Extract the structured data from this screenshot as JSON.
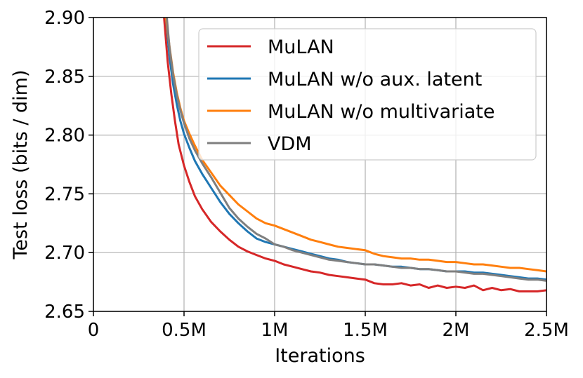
{
  "chart_data": {
    "type": "line",
    "xlabel": "Iterations",
    "ylabel": "Test loss (bits / dim)",
    "xlim": [
      0,
      2500000
    ],
    "ylim": [
      2.65,
      2.9
    ],
    "x_ticks": [
      {
        "value": 0,
        "label": "0"
      },
      {
        "value": 500000,
        "label": "0.5M"
      },
      {
        "value": 1000000,
        "label": "1M"
      },
      {
        "value": 1500000,
        "label": "1.5M"
      },
      {
        "value": 2000000,
        "label": "2M"
      },
      {
        "value": 2500000,
        "label": "2.5M"
      }
    ],
    "y_ticks": [
      {
        "value": 2.65,
        "label": "2.65"
      },
      {
        "value": 2.7,
        "label": "2.70"
      },
      {
        "value": 2.75,
        "label": "2.75"
      },
      {
        "value": 2.8,
        "label": "2.80"
      },
      {
        "value": 2.85,
        "label": "2.85"
      },
      {
        "value": 2.9,
        "label": "2.90"
      }
    ],
    "grid": true,
    "legend_position": "top-right",
    "series": [
      {
        "name": "MuLAN",
        "color": "#d62728",
        "points": [
          [
            390000,
            2.9
          ],
          [
            410000,
            2.862
          ],
          [
            430000,
            2.835
          ],
          [
            450000,
            2.812
          ],
          [
            470000,
            2.792
          ],
          [
            500000,
            2.774
          ],
          [
            530000,
            2.76
          ],
          [
            560000,
            2.748
          ],
          [
            600000,
            2.737
          ],
          [
            650000,
            2.726
          ],
          [
            700000,
            2.718
          ],
          [
            750000,
            2.711
          ],
          [
            800000,
            2.705
          ],
          [
            850000,
            2.701
          ],
          [
            900000,
            2.698
          ],
          [
            950000,
            2.695
          ],
          [
            1000000,
            2.693
          ],
          [
            1050000,
            2.69
          ],
          [
            1100000,
            2.688
          ],
          [
            1150000,
            2.686
          ],
          [
            1200000,
            2.684
          ],
          [
            1250000,
            2.683
          ],
          [
            1300000,
            2.681
          ],
          [
            1350000,
            2.68
          ],
          [
            1400000,
            2.679
          ],
          [
            1450000,
            2.678
          ],
          [
            1500000,
            2.677
          ],
          [
            1550000,
            2.674
          ],
          [
            1600000,
            2.673
          ],
          [
            1650000,
            2.673
          ],
          [
            1700000,
            2.674
          ],
          [
            1750000,
            2.672
          ],
          [
            1800000,
            2.673
          ],
          [
            1850000,
            2.67
          ],
          [
            1900000,
            2.672
          ],
          [
            1950000,
            2.67
          ],
          [
            2000000,
            2.671
          ],
          [
            2050000,
            2.67
          ],
          [
            2100000,
            2.672
          ],
          [
            2150000,
            2.668
          ],
          [
            2200000,
            2.67
          ],
          [
            2250000,
            2.668
          ],
          [
            2300000,
            2.669
          ],
          [
            2350000,
            2.667
          ],
          [
            2400000,
            2.667
          ],
          [
            2450000,
            2.667
          ],
          [
            2500000,
            2.668
          ]
        ]
      },
      {
        "name": "MuLAN w/o aux. latent",
        "color": "#1f77b4",
        "points": [
          [
            400000,
            2.9
          ],
          [
            420000,
            2.866
          ],
          [
            440000,
            2.843
          ],
          [
            460000,
            2.826
          ],
          [
            480000,
            2.812
          ],
          [
            500000,
            2.801
          ],
          [
            530000,
            2.789
          ],
          [
            560000,
            2.778
          ],
          [
            600000,
            2.767
          ],
          [
            650000,
            2.755
          ],
          [
            700000,
            2.743
          ],
          [
            750000,
            2.733
          ],
          [
            800000,
            2.725
          ],
          [
            850000,
            2.718
          ],
          [
            900000,
            2.712
          ],
          [
            950000,
            2.709
          ],
          [
            1000000,
            2.707
          ],
          [
            1050000,
            2.705
          ],
          [
            1100000,
            2.703
          ],
          [
            1150000,
            2.701
          ],
          [
            1200000,
            2.699
          ],
          [
            1250000,
            2.697
          ],
          [
            1300000,
            2.695
          ],
          [
            1350000,
            2.694
          ],
          [
            1400000,
            2.692
          ],
          [
            1450000,
            2.691
          ],
          [
            1500000,
            2.69
          ],
          [
            1550000,
            2.69
          ],
          [
            1600000,
            2.689
          ],
          [
            1650000,
            2.688
          ],
          [
            1700000,
            2.688
          ],
          [
            1750000,
            2.687
          ],
          [
            1800000,
            2.686
          ],
          [
            1850000,
            2.686
          ],
          [
            1900000,
            2.685
          ],
          [
            1950000,
            2.684
          ],
          [
            2000000,
            2.684
          ],
          [
            2050000,
            2.684
          ],
          [
            2100000,
            2.683
          ],
          [
            2150000,
            2.683
          ],
          [
            2200000,
            2.682
          ],
          [
            2250000,
            2.681
          ],
          [
            2300000,
            2.68
          ],
          [
            2350000,
            2.679
          ],
          [
            2400000,
            2.678
          ],
          [
            2450000,
            2.678
          ],
          [
            2500000,
            2.677
          ]
        ]
      },
      {
        "name": "MuLAN w/o multivariate",
        "color": "#ff7f0e",
        "points": [
          [
            400000,
            2.9
          ],
          [
            420000,
            2.875
          ],
          [
            440000,
            2.853
          ],
          [
            460000,
            2.836
          ],
          [
            480000,
            2.823
          ],
          [
            500000,
            2.812
          ],
          [
            530000,
            2.801
          ],
          [
            560000,
            2.791
          ],
          [
            600000,
            2.779
          ],
          [
            650000,
            2.768
          ],
          [
            700000,
            2.757
          ],
          [
            750000,
            2.749
          ],
          [
            800000,
            2.741
          ],
          [
            850000,
            2.735
          ],
          [
            900000,
            2.729
          ],
          [
            950000,
            2.725
          ],
          [
            1000000,
            2.723
          ],
          [
            1050000,
            2.72
          ],
          [
            1100000,
            2.717
          ],
          [
            1150000,
            2.714
          ],
          [
            1200000,
            2.711
          ],
          [
            1250000,
            2.709
          ],
          [
            1300000,
            2.707
          ],
          [
            1350000,
            2.705
          ],
          [
            1400000,
            2.704
          ],
          [
            1450000,
            2.703
          ],
          [
            1500000,
            2.702
          ],
          [
            1550000,
            2.699
          ],
          [
            1600000,
            2.697
          ],
          [
            1650000,
            2.696
          ],
          [
            1700000,
            2.695
          ],
          [
            1750000,
            2.695
          ],
          [
            1800000,
            2.694
          ],
          [
            1850000,
            2.694
          ],
          [
            1900000,
            2.693
          ],
          [
            1950000,
            2.692
          ],
          [
            2000000,
            2.692
          ],
          [
            2050000,
            2.691
          ],
          [
            2100000,
            2.69
          ],
          [
            2150000,
            2.69
          ],
          [
            2200000,
            2.689
          ],
          [
            2250000,
            2.688
          ],
          [
            2300000,
            2.687
          ],
          [
            2350000,
            2.687
          ],
          [
            2400000,
            2.686
          ],
          [
            2450000,
            2.685
          ],
          [
            2500000,
            2.684
          ]
        ]
      },
      {
        "name": "VDM",
        "color": "#7f7f7f",
        "points": [
          [
            405000,
            2.9
          ],
          [
            420000,
            2.874
          ],
          [
            440000,
            2.851
          ],
          [
            460000,
            2.834
          ],
          [
            480000,
            2.821
          ],
          [
            500000,
            2.81
          ],
          [
            530000,
            2.797
          ],
          [
            560000,
            2.787
          ],
          [
            600000,
            2.776
          ],
          [
            650000,
            2.764
          ],
          [
            700000,
            2.751
          ],
          [
            750000,
            2.738
          ],
          [
            800000,
            2.729
          ],
          [
            850000,
            2.722
          ],
          [
            900000,
            2.716
          ],
          [
            950000,
            2.712
          ],
          [
            1000000,
            2.707
          ],
          [
            1050000,
            2.705
          ],
          [
            1100000,
            2.702
          ],
          [
            1150000,
            2.7
          ],
          [
            1200000,
            2.698
          ],
          [
            1250000,
            2.696
          ],
          [
            1300000,
            2.694
          ],
          [
            1350000,
            2.693
          ],
          [
            1400000,
            2.692
          ],
          [
            1450000,
            2.691
          ],
          [
            1500000,
            2.69
          ],
          [
            1550000,
            2.69
          ],
          [
            1600000,
            2.689
          ],
          [
            1650000,
            2.688
          ],
          [
            1700000,
            2.687
          ],
          [
            1750000,
            2.687
          ],
          [
            1800000,
            2.686
          ],
          [
            1850000,
            2.686
          ],
          [
            1900000,
            2.685
          ],
          [
            1950000,
            2.684
          ],
          [
            2000000,
            2.684
          ],
          [
            2050000,
            2.683
          ],
          [
            2100000,
            2.682
          ],
          [
            2150000,
            2.682
          ],
          [
            2200000,
            2.681
          ],
          [
            2250000,
            2.68
          ],
          [
            2300000,
            2.679
          ],
          [
            2350000,
            2.678
          ],
          [
            2400000,
            2.677
          ],
          [
            2450000,
            2.677
          ],
          [
            2500000,
            2.676
          ]
        ]
      }
    ]
  }
}
